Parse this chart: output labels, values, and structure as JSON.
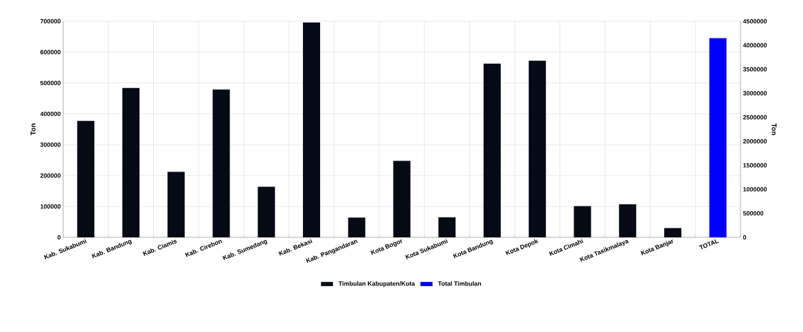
{
  "chart_data": {
    "type": "bar",
    "categories": [
      "Kab. Sukabumi",
      "Kab. Bandung",
      "Kab. Ciamis",
      "Kab. Cirebon",
      "Kab. Sumedang",
      "Kab. Bekasi",
      "Kab. Pangandaran",
      "Kota Bogor",
      "Kota Sukabumi",
      "Kota Bandung",
      "Kota Depok",
      "Kota Cimahi",
      "Kota Tasikmalaya",
      "Kota Banjar",
      "TOTAL"
    ],
    "series": [
      {
        "name": "Timbulan Kabupaten/Kota",
        "color": "#050a14",
        "values": [
          377000,
          484000,
          212000,
          479000,
          164000,
          696000,
          64000,
          248000,
          65000,
          563000,
          572000,
          101000,
          107000,
          30000,
          null
        ]
      },
      {
        "name": "Total Timbulan",
        "color": "#0000ff",
        "axis": "y2",
        "values": [
          null,
          null,
          null,
          null,
          null,
          null,
          null,
          null,
          null,
          null,
          null,
          null,
          null,
          null,
          4150000
        ]
      }
    ],
    "ylabel": "Ton",
    "y2label": "Ton",
    "ylim": [
      0,
      700000
    ],
    "yticks": [
      0,
      100000,
      200000,
      300000,
      400000,
      500000,
      600000,
      700000
    ],
    "y2lim": [
      0,
      4500000
    ],
    "y2ticks": [
      0,
      500000,
      1000000,
      1500000,
      2000000,
      2500000,
      3000000,
      3500000,
      4000000,
      4500000
    ],
    "grid": true,
    "legend": "bottom"
  }
}
